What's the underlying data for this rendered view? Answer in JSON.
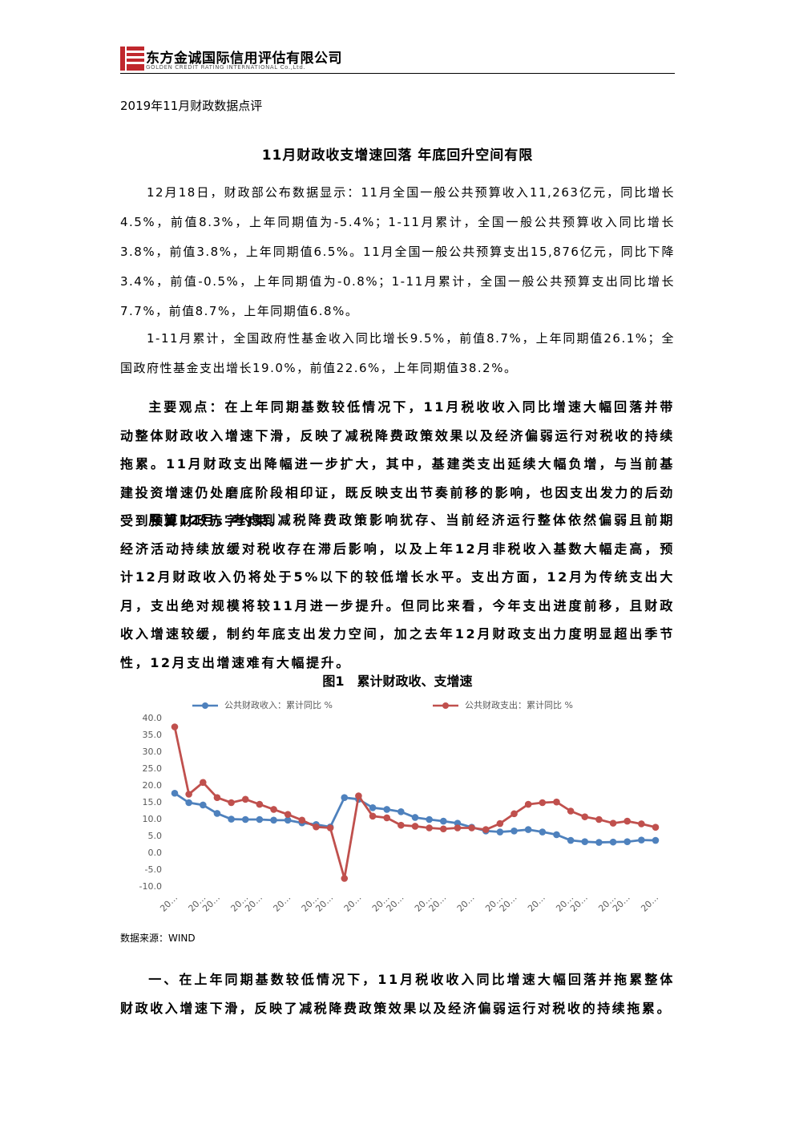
{
  "header": {
    "company": "东方金诚国际信用评估有限公司",
    "company_en": "GOLDEN CREDIT RATING INTERNATIONAL Co.,Ltd."
  },
  "document": {
    "subtitle": "2019年11月财政数据点评",
    "title": "11月财政收支增速回落 年底回升空间有限",
    "paragraphs": [
      {
        "text": "12月18日，财政部公布数据显示：11月全国一般公共预算收入11,263亿元，同比增长4.5%，前值8.3%，上年同期值为-5.4%；1-11月累计，全国一般公共预算收入同比增长3.8%，前值3.8%，上年同期值6.5%。11月全国一般公共预算支出15,876亿元，同比下降3.4%，前值-0.5%，上年同期值为-0.8%；1-11月累计，全国一般公共预算支出同比增长7.7%，前值8.7%，上年同期值6.8%。",
        "bold": false
      },
      {
        "text": "1-11月累计，全国政府性基金收入同比增长9.5%，前值8.7%，上年同期值26.1%；全国政府性基金支出增长19.0%，前值22.6%，上年同期值38.2%。",
        "bold": false
      },
      {
        "text": "主要观点：在上年同期基数较低情况下，11月税收收入同比增速大幅回落并带动整体财政收入增速下滑，反映了减税降费政策效果以及经济偏弱运行对税收的持续拖累。11月财政支出降幅进一步扩大，其中，基建类支出延续大幅负增，与当前基建投资增速仍处磨底阶段相印证，既反映支出节奏前移的影响，也因支出发力的后劲受到预算财政赤字约束。",
        "bold": true
      },
      {
        "text": "展望12月，考虑到减税降费政策影响犹存、当前经济运行整体依然偏弱且前期经济活动持续放缓对税收存在滞后影响，以及上年12月非税收入基数大幅走高，预计12月财政收入仍将处于5%以下的较低增长水平。支出方面，12月为传统支出大月，支出绝对规模将较11月进一步提升。但同比来看，今年支出进度前移，且财政收入增速较缓，制约年底支出发力空间，加之去年12月财政支出力度明显超出季节性，12月支出增速难有大幅提升。",
        "bold": true
      }
    ],
    "closing": {
      "text": "一、在上年同期基数较低情况下，11月税收收入同比增速大幅回落并拖累整体财政收入增速下滑，反映了减税降费政策效果以及经济偏弱运行对税收的持续拖累。",
      "bold": true
    }
  },
  "chart_data": {
    "type": "line",
    "title": "图1　累计财政收、支增速",
    "source": "数据来源：WIND",
    "categories": [
      "20…",
      null,
      "20…",
      "20…",
      null,
      "20…",
      "20…",
      null,
      "20…",
      null,
      "20…",
      "20…",
      null,
      "20…",
      null,
      "20…",
      "20…",
      null,
      "20…",
      "20…",
      null,
      "20…",
      null,
      "20…",
      "20…",
      null,
      "20…",
      null,
      "20…",
      "20…",
      null,
      "20…",
      "20…",
      null,
      "20…"
    ],
    "series": [
      {
        "name": "公共财政收入：累计同比 %",
        "color": "#4e81bd",
        "values": [
          17.8,
          15.0,
          14.3,
          11.8,
          10.1,
          10.0,
          10.0,
          9.8,
          9.8,
          9.0,
          8.5,
          7.8,
          16.5,
          16.0,
          13.5,
          13.0,
          12.3,
          10.6,
          10.0,
          9.5,
          8.9,
          7.7,
          6.6,
          6.3,
          6.6,
          7.0,
          6.3,
          5.5,
          3.8,
          3.4,
          3.2,
          3.3,
          3.4,
          3.9,
          3.8
        ]
      },
      {
        "name": "公共财政支出：累计同比 %",
        "color": "#c0504d",
        "values": [
          37.5,
          17.5,
          21.0,
          16.5,
          15.0,
          16.0,
          14.5,
          13.0,
          11.5,
          9.8,
          7.8,
          7.5,
          -7.5,
          17.0,
          11.0,
          10.5,
          8.3,
          8.0,
          7.5,
          7.2,
          7.5,
          7.5,
          7.0,
          8.8,
          11.7,
          14.5,
          15.0,
          15.2,
          12.5,
          10.8,
          10.0,
          8.9,
          9.5,
          8.7,
          7.7
        ]
      }
    ],
    "ylim": [
      -10,
      40
    ],
    "yticks": [
      {
        "value": 40,
        "label": "40.0"
      },
      {
        "value": 35,
        "label": "35.0"
      },
      {
        "value": 30,
        "label": "30.0"
      },
      {
        "value": 25,
        "label": "25.0"
      },
      {
        "value": 20,
        "label": "20.0"
      },
      {
        "value": 15,
        "label": "15.0"
      },
      {
        "value": 10,
        "label": "10.0"
      },
      {
        "value": 5,
        "label": "5.0"
      },
      {
        "value": 0,
        "label": "0.0"
      },
      {
        "value": -5,
        "label": "-5.0"
      },
      {
        "value": -10,
        "label": "-10.0"
      }
    ],
    "grid": false,
    "legend": "top"
  }
}
